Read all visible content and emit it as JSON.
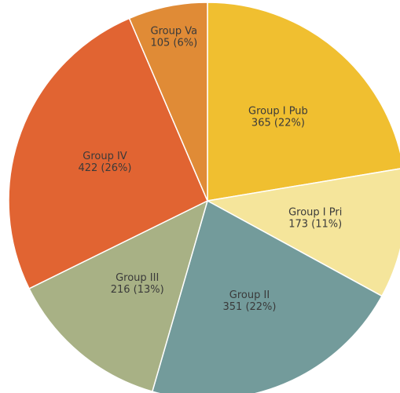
{
  "chart_data": {
    "type": "pie",
    "categories": [
      "Group I Pub",
      "Group I Pri",
      "Group II",
      "Group III",
      "Group IV",
      "Group Va"
    ],
    "values": [
      365,
      173,
      351,
      216,
      422,
      105
    ],
    "value_labels": [
      "365 (22%)",
      "173 (11%)",
      "351 (22%)",
      "216 (13%)",
      "422 (26%)",
      "105 (6%)"
    ],
    "colors": [
      "#f0bf30",
      "#f5e59b",
      "#739b9b",
      "#a8b185",
      "#e16432",
      "#e08b36"
    ]
  }
}
